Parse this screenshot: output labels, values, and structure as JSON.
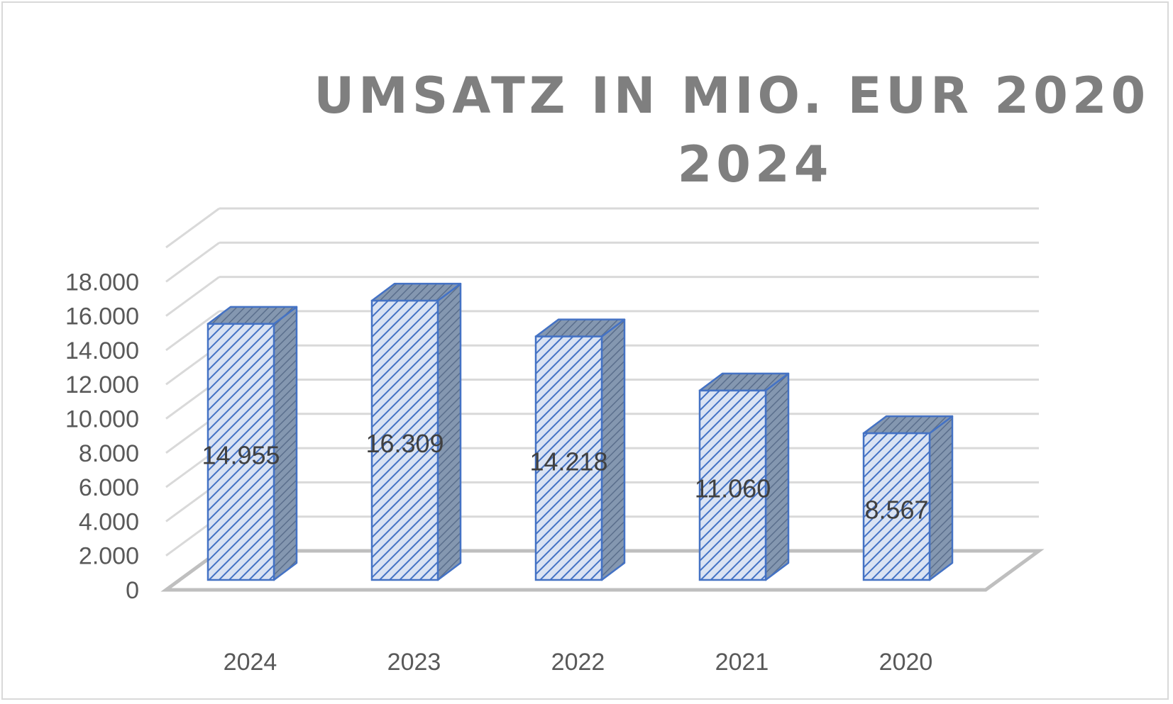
{
  "chart_data": {
    "type": "bar",
    "title_lines": [
      "UMSATZ IN MIO. EUR 2020 -",
      "2024"
    ],
    "categories": [
      "2024",
      "2023",
      "2022",
      "2021",
      "2020"
    ],
    "values": [
      14955,
      16309,
      14218,
      11060,
      8567
    ],
    "value_labels": [
      "14.955",
      "16.309",
      "14.218",
      "11.060",
      "8.567"
    ],
    "y_ticks": [
      "0",
      "2.000",
      "4.000",
      "6.000",
      "8.000",
      "10.000",
      "12.000",
      "14.000",
      "16.000",
      "18.000"
    ],
    "ylim": [
      0,
      20000
    ],
    "y_step": 2000,
    "grid": true,
    "legend": "none",
    "style": "3d-column",
    "colors": {
      "bar_stroke": "#4472c4",
      "bar_front": "#dae3f3",
      "bar_side": "#8497b0",
      "grid": "#d9d9d9",
      "floor": "#bfbfbf",
      "title": "#7f7f7f",
      "tick": "#595959",
      "label": "#404040"
    }
  }
}
